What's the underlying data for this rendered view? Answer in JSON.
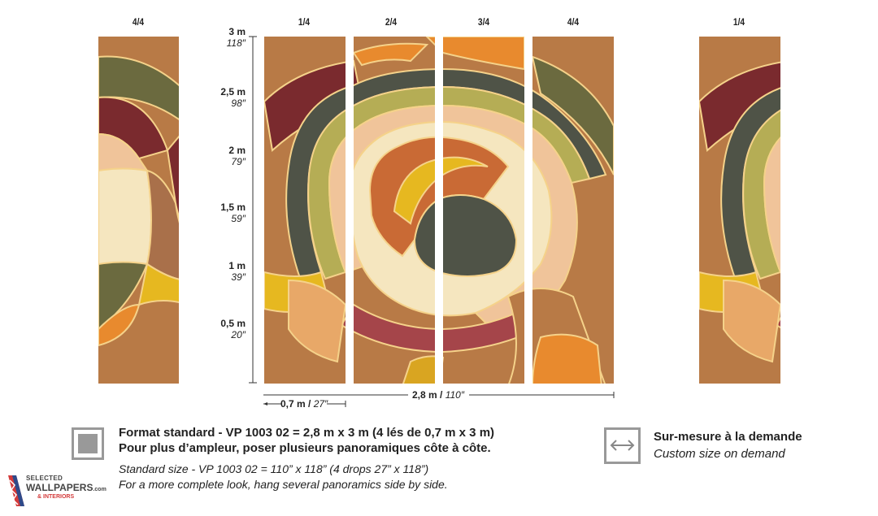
{
  "drop_labels": {
    "left_preview": "4/4",
    "drop1": "1/4",
    "drop2": "2/4",
    "drop3": "3/4",
    "drop4": "4/4",
    "right_preview": "1/4"
  },
  "ruler": [
    {
      "metric": "3 m",
      "imperial": "118″"
    },
    {
      "metric": "2,5 m",
      "imperial": "98″"
    },
    {
      "metric": "2 m",
      "imperial": "79″"
    },
    {
      "metric": "1,5 m",
      "imperial": "59″"
    },
    {
      "metric": "1 m",
      "imperial": "39″"
    },
    {
      "metric": "0,5 m",
      "imperial": "20″"
    }
  ],
  "dimensions": {
    "drop_width_metric": "0,7 m",
    "drop_width_imperial": "27″",
    "total_width_metric": "2,8 m",
    "total_width_imperial": "110″"
  },
  "standard": {
    "line1": "Format standard - VP 1003 02 = 2,8 m x 3 m (4 lés de 0,7 m x 3 m)",
    "line2": "Pour plus d’ampleur, poser plusieurs panoramiques côte à côte.",
    "line3": "Standard size - VP 1003 02 = 110” x 118” (4 drops 27” x 118”)",
    "line4": "For a more complete look, hang several panoramics side by side."
  },
  "custom": {
    "line1": "Sur-mesure à la demande",
    "line2": "Custom size on demand"
  },
  "logo": {
    "line1": "SELECTED",
    "line2": "WALLPAPERS",
    "suffix": ".com",
    "line3": "& INTERIORS"
  },
  "colors": {
    "caramel": "#b87a46",
    "olive": "#6b6a3f",
    "maroon": "#7a2a2e",
    "pistachio": "#b5ad55",
    "peach": "#f0c49a",
    "cream": "#f5e6bf",
    "slate": "#4f5347",
    "rust": "#c96a35",
    "yellow": "#e6b820",
    "orange": "#e88a2e",
    "brick": "#a5454a",
    "sand": "#e8a868"
  }
}
